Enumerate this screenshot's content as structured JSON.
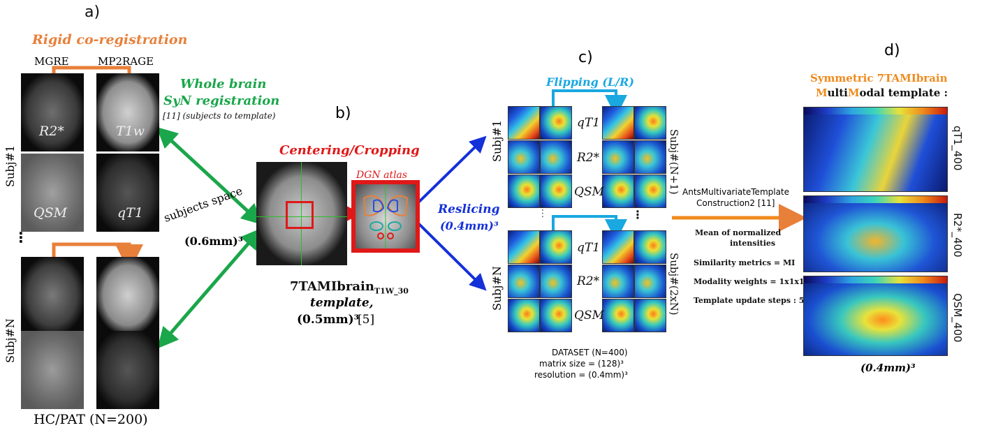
{
  "panel_a": {
    "letter": "a)",
    "title": "Rigid co-registration",
    "col1": "MGRE",
    "col2": "MP2RAGE",
    "r2star": "R2*",
    "t1w": "T1w",
    "qsm": "QSM",
    "qt1": "qT1",
    "subj1": "Subj#1",
    "subjN": "Subj#N",
    "ellipsis": "⋮",
    "footer": "HC/PAT (N=200)"
  },
  "syn": {
    "line1": "Whole brain",
    "line2": "SyN registration",
    "note": "[11] (subjects to template)"
  },
  "subjects_space": {
    "line1": "subjects space",
    "line2": "(0.6mm)³"
  },
  "panel_b": {
    "letter": "b)",
    "title": "Centering/Cropping",
    "atlas": "DGN atlas",
    "template_name": "7TAMIbrain",
    "template_sub": "T1W_30",
    "template_word": "template,",
    "template_res": "(0.5mm)³",
    "template_ref": "[5]"
  },
  "reslicing": {
    "line1": "Reslicing",
    "line2": "(0.4mm)³"
  },
  "panel_c": {
    "letter": "c)",
    "flip": "Flipping (L/R)",
    "rows": [
      "qT1",
      "R2*",
      "QSM"
    ],
    "subj1": "Subj#1",
    "subjN": "Subj#N",
    "subjN1": "Subj#(N+1)",
    "subj2N": "Subj#(2xN)",
    "dataset": "DATASET (N=400)",
    "matrix": "matrix size = (128)³",
    "resolution": "resolution = (0.4mm)³"
  },
  "ants": {
    "line1": "AntsMultivariateTemplate",
    "line2": "Construction2 [11]",
    "mean1": "Mean of normalized",
    "mean2": "intensities",
    "sim": "Similarity metrics = MI",
    "weights": "Modality weights = 1x1x1",
    "steps": "Template update steps : 5"
  },
  "panel_d": {
    "letter": "d)",
    "title1": "Symmetric 7TAMIbrain",
    "title2_m1": "M",
    "title2_r1": "ulti",
    "title2_m2": "M",
    "title2_r2": "odal template :",
    "labels": [
      "qT1_400",
      "R2*_400",
      "QSM_400"
    ],
    "res": "(0.4mm)³"
  },
  "colors": {
    "orange": "#e8803a",
    "green": "#1aa64a",
    "red": "#e01818",
    "blue": "#1430d8",
    "cyan": "#19a8e0"
  }
}
